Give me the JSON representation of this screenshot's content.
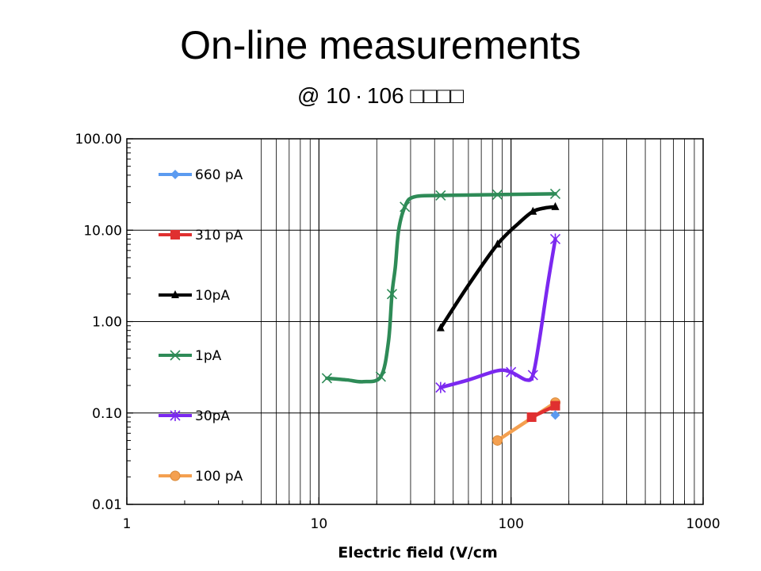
{
  "title": "On-line measurements",
  "subtitle": "@ 10 · 106 □□□□",
  "chart_data": {
    "type": "line",
    "xscale": "log",
    "yscale": "log",
    "xlim": [
      1,
      1000
    ],
    "ylim": [
      0.01,
      100
    ],
    "xlabel": "Electric field (V/cm",
    "ylabel": "",
    "x_ticks": [
      "1",
      "10",
      "100",
      "1000"
    ],
    "y_ticks": [
      "100.00",
      "10.00",
      "1.00",
      "0.10",
      "0.01"
    ],
    "grid": true,
    "legend_position": "left-inside",
    "series": [
      {
        "name": "660 pA",
        "color": "#5b9bf0",
        "marker": "diamond",
        "x": [
          170
        ],
        "y": [
          0.095
        ]
      },
      {
        "name": "310 pA",
        "color": "#e03030",
        "marker": "square",
        "x": [
          128,
          170
        ],
        "y": [
          0.09,
          0.12
        ]
      },
      {
        "name": "10pA",
        "color": "#000000",
        "marker": "triangle",
        "x": [
          43,
          60,
          85,
          110,
          130,
          150,
          170
        ],
        "y": [
          0.85,
          2.5,
          7,
          12,
          16,
          17.5,
          18
        ]
      },
      {
        "name": "1pA",
        "color": "#2e8b57",
        "marker": "x",
        "x": [
          11,
          14,
          17,
          21,
          23,
          24,
          25,
          26,
          28,
          31,
          43,
          85,
          170
        ],
        "y": [
          0.24,
          0.23,
          0.22,
          0.25,
          0.6,
          2,
          4,
          10,
          18,
          23,
          24,
          24.5,
          25
        ]
      },
      {
        "name": "30pA",
        "color": "#7b28f0",
        "marker": "star",
        "x": [
          43,
          60,
          85,
          100,
          120,
          130,
          140,
          155,
          170
        ],
        "y": [
          0.19,
          0.23,
          0.29,
          0.28,
          0.23,
          0.26,
          0.6,
          2.5,
          8
        ]
      },
      {
        "name": "100 pA",
        "color": "#f4a050",
        "marker": "circle",
        "x": [
          85,
          170
        ],
        "y": [
          0.05,
          0.13
        ]
      }
    ]
  }
}
